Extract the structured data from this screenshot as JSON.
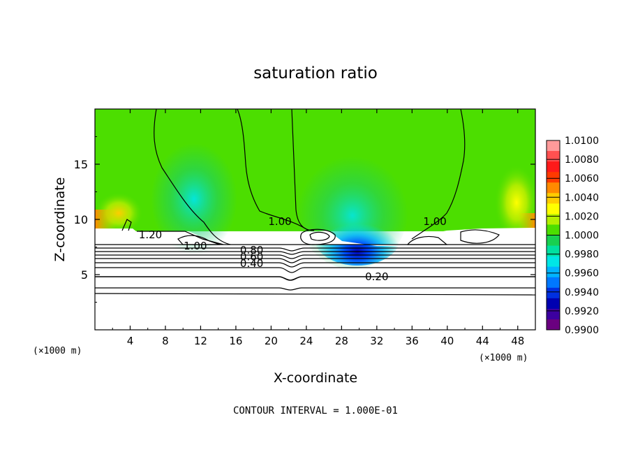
{
  "chart_data": {
    "type": "heatmap",
    "title": "saturation ratio",
    "xlabel": "X-coordinate",
    "ylabel": "Z-coordinate",
    "x_unit": "(×1000 m)",
    "x_unit_right": "(×1000 m)",
    "footer": "CONTOUR INTERVAL = 1.000E-01",
    "xlim": [
      0,
      50
    ],
    "ylim": [
      0,
      20
    ],
    "x_ticks": [
      4,
      8,
      12,
      16,
      20,
      24,
      28,
      32,
      36,
      40,
      44,
      48
    ],
    "x_tick_labels": [
      "4",
      "8",
      "12",
      "16",
      "20",
      "24",
      "28",
      "32",
      "36",
      "40",
      "44",
      "48"
    ],
    "y_ticks": [
      5,
      10,
      15
    ],
    "y_tick_labels": [
      "5",
      "10",
      "15"
    ],
    "colorbar": {
      "min": 0.99,
      "max": 1.01,
      "labels": [
        "1.0100",
        "1.0080",
        "1.0060",
        "1.0040",
        "1.0020",
        "1.0000",
        "0.9980",
        "0.9960",
        "0.9940",
        "0.9920",
        "0.9900"
      ],
      "colors": [
        "#ff9a9a",
        "#ff5050",
        "#ff1a1a",
        "#ff3a00",
        "#ff8a00",
        "#ffcc00",
        "#ffff00",
        "#b4f000",
        "#4cde00",
        "#18d050",
        "#00e0a0",
        "#00e6e6",
        "#00b4ff",
        "#0078ff",
        "#0030e0",
        "#0000b0",
        "#3c00a0",
        "#6a0080"
      ]
    },
    "contour_labels": [
      {
        "text": "1.20",
        "x": 6.3,
        "y": 8.6
      },
      {
        "text": "1.00",
        "x": 11.4,
        "y": 7.6
      },
      {
        "text": "0.80",
        "x": 17.8,
        "y": 7.2
      },
      {
        "text": "0.60",
        "x": 17.8,
        "y": 6.6
      },
      {
        "text": "0.40",
        "x": 17.8,
        "y": 6.0
      },
      {
        "text": "0.20",
        "x": 32.0,
        "y": 4.8
      },
      {
        "text": "1.00",
        "x": 21.0,
        "y": 9.8
      },
      {
        "text": "1.00",
        "x": 38.6,
        "y": 9.8
      }
    ]
  }
}
